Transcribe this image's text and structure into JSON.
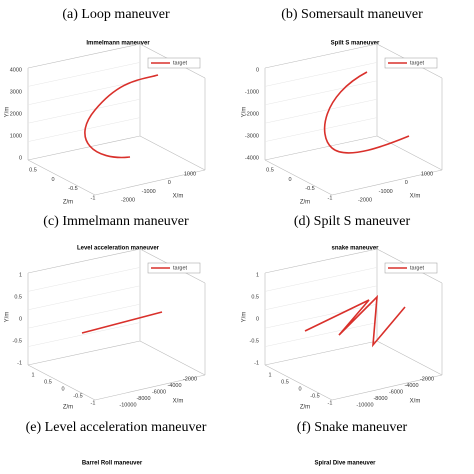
{
  "captions": [
    "(a) Loop maneuver",
    "(b) Somersault maneuver",
    "(c) Immelmann maneuver",
    "(d) Spilt S maneuver",
    "(e) Level acceleration maneuver",
    "(f) Snake maneuver"
  ],
  "panels": [
    {
      "title": "Immelmann maneuver",
      "legend": "target",
      "y_label": "Y/m",
      "z_label": "Z/m",
      "x_label": "X/m",
      "yticks": [
        "4000",
        "3000",
        "2000",
        "1000",
        "0"
      ],
      "zticks": [
        "0.5",
        "0",
        "-0.5",
        "-1"
      ],
      "xticks": [
        "-2000",
        "-1000",
        "0",
        "1000"
      ]
    },
    {
      "title": "Spilt S maneuver",
      "legend": "target",
      "y_label": "Y/m",
      "z_label": "Z/m",
      "x_label": "X/m",
      "yticks": [
        "0",
        "-1000",
        "-2000",
        "-3000",
        "-4000"
      ],
      "zticks": [
        "0.5",
        "0",
        "-0.5",
        "-1"
      ],
      "xticks": [
        "-2000",
        "-1000",
        "0",
        "1000"
      ]
    },
    {
      "title": "Level acceleration maneuver",
      "legend": "target",
      "y_label": "Y/m",
      "z_label": "Z/m",
      "x_label": "X/m",
      "yticks": [
        "1",
        "0.5",
        "0",
        "-0.5",
        "-1"
      ],
      "zticks": [
        "1",
        "0.5",
        "0",
        "-0.5",
        "-1"
      ],
      "xticks": [
        "-10000",
        "-8000",
        "-6000",
        "-4000",
        "-2000"
      ]
    },
    {
      "title": "snake maneuver",
      "legend": "target",
      "y_label": "Y/m",
      "z_label": "Z/m",
      "x_label": "X/m",
      "yticks": [
        "1",
        "0.5",
        "0",
        "-0.5",
        "-1"
      ],
      "zticks": [
        "1",
        "0.5",
        "0",
        "-0.5",
        "-1"
      ],
      "xticks": [
        "-10000",
        "-8000",
        "-6000",
        "-4000",
        "-2000"
      ]
    }
  ],
  "partial_titles": [
    "Barrel Roll maneuver",
    "Spiral Dive maneuver"
  ]
}
